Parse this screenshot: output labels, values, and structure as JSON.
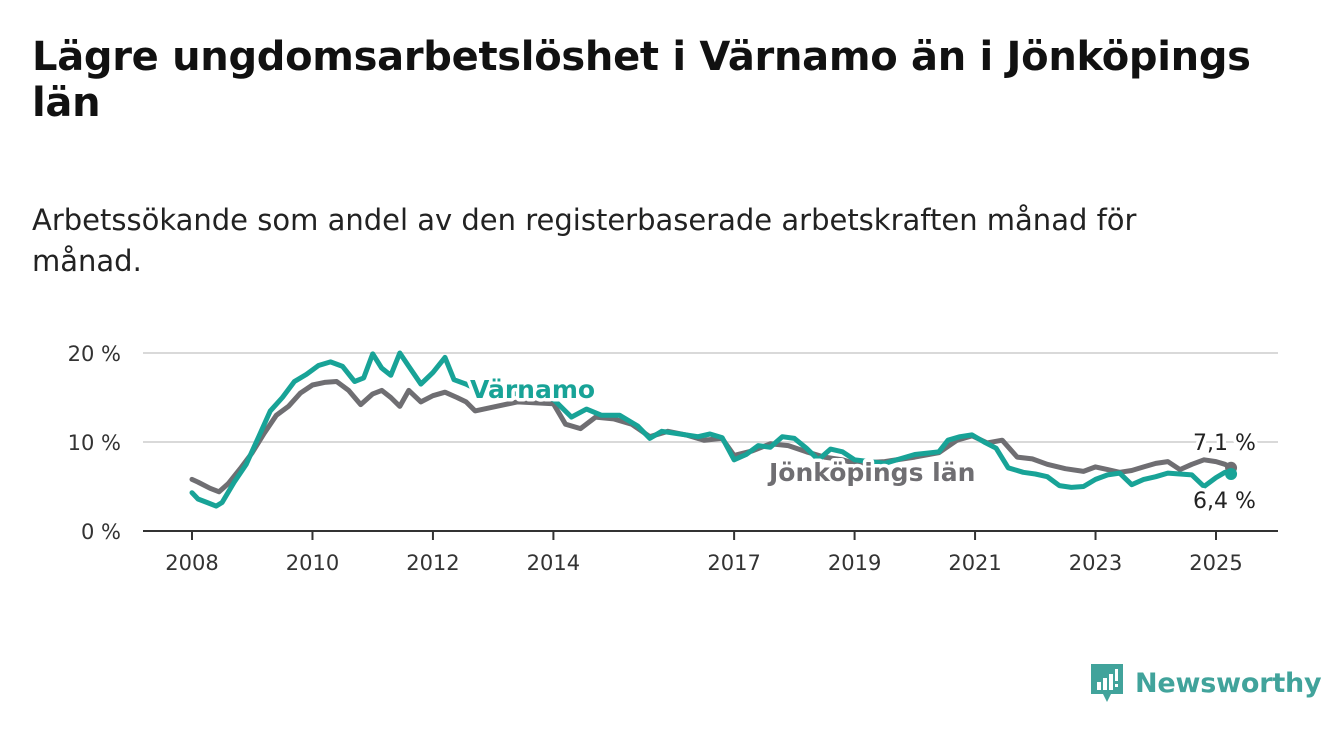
{
  "title": "Lägre ungdomsarbetslöshet i Värnamo än i Jönköpings län",
  "subtitle": "Arbetssökande som andel av den registerbaserade arbetskraften månad för månad.",
  "brand": {
    "name": "Newsworthy",
    "icon": "newsworthy-logo-icon",
    "color": "#41a39b"
  },
  "colors": {
    "varnamo": "#18a397",
    "jonkoping": "#6f6e72",
    "grid": "#d9d9d9",
    "axis": "#333333"
  },
  "chart_data": {
    "type": "line",
    "title": "Lägre ungdomsarbetslöshet i Värnamo än i Jönköpings län",
    "subtitle": "Arbetssökande som andel av den registerbaserade arbetskraften månad för månad.",
    "xlabel": "",
    "ylabel": "",
    "x_range": [
      2008,
      2025.25
    ],
    "ylim": [
      0,
      20
    ],
    "y_ticks": [
      0,
      10,
      20
    ],
    "y_tick_labels": [
      "0 %",
      "10 %",
      "20 %"
    ],
    "x_ticks": [
      2008,
      2010,
      2012,
      2014,
      2017,
      2019,
      2021,
      2023,
      2025
    ],
    "x_tick_labels": [
      "2008",
      "2010",
      "2012",
      "2014",
      "2017",
      "2019",
      "2021",
      "2023",
      "2025"
    ],
    "grid": true,
    "legend": "direct labels",
    "series": [
      {
        "name": "Värnamo",
        "color": "#18a397",
        "end_label": "6,4 %",
        "points": [
          [
            2008.0,
            4.3
          ],
          [
            2008.1,
            3.6
          ],
          [
            2008.25,
            3.2
          ],
          [
            2008.4,
            2.8
          ],
          [
            2008.5,
            3.2
          ],
          [
            2008.7,
            5.5
          ],
          [
            2008.9,
            7.5
          ],
          [
            2009.1,
            10.5
          ],
          [
            2009.3,
            13.5
          ],
          [
            2009.5,
            15.0
          ],
          [
            2009.7,
            16.8
          ],
          [
            2009.9,
            17.6
          ],
          [
            2010.1,
            18.6
          ],
          [
            2010.3,
            19.0
          ],
          [
            2010.5,
            18.5
          ],
          [
            2010.7,
            16.8
          ],
          [
            2010.85,
            17.2
          ],
          [
            2011.0,
            19.9
          ],
          [
            2011.15,
            18.3
          ],
          [
            2011.3,
            17.5
          ],
          [
            2011.45,
            20.0
          ],
          [
            2011.6,
            18.5
          ],
          [
            2011.8,
            16.5
          ],
          [
            2012.0,
            17.8
          ],
          [
            2012.2,
            19.5
          ],
          [
            2012.35,
            17.0
          ],
          [
            2012.55,
            16.5
          ],
          [
            2012.7,
            16.0
          ],
          [
            2013.4,
            15.4
          ],
          [
            2014.0,
            14.8
          ],
          [
            2014.3,
            12.8
          ],
          [
            2014.55,
            13.7
          ],
          [
            2014.8,
            13.0
          ],
          [
            2015.1,
            13.0
          ],
          [
            2015.4,
            11.8
          ],
          [
            2015.6,
            10.4
          ],
          [
            2015.8,
            11.2
          ],
          [
            2016.1,
            10.9
          ],
          [
            2016.4,
            10.6
          ],
          [
            2016.6,
            10.9
          ],
          [
            2016.8,
            10.5
          ],
          [
            2017.0,
            8.0
          ],
          [
            2017.2,
            8.6
          ],
          [
            2017.4,
            9.6
          ],
          [
            2017.6,
            9.4
          ],
          [
            2017.8,
            10.6
          ],
          [
            2018.0,
            10.4
          ],
          [
            2018.2,
            9.3
          ],
          [
            2018.4,
            8.0
          ],
          [
            2018.6,
            9.2
          ],
          [
            2018.8,
            8.9
          ],
          [
            2019.0,
            8.0
          ],
          [
            2019.5,
            7.6
          ],
          [
            2020.0,
            8.6
          ],
          [
            2020.4,
            8.9
          ],
          [
            2020.55,
            10.2
          ],
          [
            2020.75,
            10.6
          ],
          [
            2020.95,
            10.8
          ],
          [
            2021.15,
            10.0
          ],
          [
            2021.35,
            9.3
          ],
          [
            2021.55,
            7.1
          ],
          [
            2021.8,
            6.6
          ],
          [
            2022.0,
            6.4
          ],
          [
            2022.2,
            6.1
          ],
          [
            2022.4,
            5.1
          ],
          [
            2022.6,
            4.9
          ],
          [
            2022.8,
            5.0
          ],
          [
            2023.0,
            5.8
          ],
          [
            2023.2,
            6.3
          ],
          [
            2023.4,
            6.5
          ],
          [
            2023.6,
            5.2
          ],
          [
            2023.8,
            5.8
          ],
          [
            2024.0,
            6.1
          ],
          [
            2024.2,
            6.5
          ],
          [
            2024.4,
            6.4
          ],
          [
            2024.6,
            6.3
          ],
          [
            2024.8,
            5.0
          ],
          [
            2025.0,
            6.0
          ],
          [
            2025.15,
            6.6
          ],
          [
            2025.25,
            6.4
          ]
        ]
      },
      {
        "name": "Jönköpings län",
        "color": "#6f6e72",
        "end_label": "7,1 %",
        "points": [
          [
            2008.0,
            5.8
          ],
          [
            2008.1,
            5.5
          ],
          [
            2008.3,
            4.8
          ],
          [
            2008.45,
            4.4
          ],
          [
            2008.6,
            5.3
          ],
          [
            2008.8,
            7.0
          ],
          [
            2009.0,
            8.8
          ],
          [
            2009.2,
            11.0
          ],
          [
            2009.4,
            13.0
          ],
          [
            2009.6,
            14.0
          ],
          [
            2009.8,
            15.5
          ],
          [
            2010.0,
            16.4
          ],
          [
            2010.2,
            16.7
          ],
          [
            2010.4,
            16.8
          ],
          [
            2010.6,
            15.8
          ],
          [
            2010.8,
            14.2
          ],
          [
            2011.0,
            15.4
          ],
          [
            2011.15,
            15.8
          ],
          [
            2011.3,
            15.0
          ],
          [
            2011.45,
            14.0
          ],
          [
            2011.6,
            15.8
          ],
          [
            2011.8,
            14.5
          ],
          [
            2012.0,
            15.2
          ],
          [
            2012.2,
            15.6
          ],
          [
            2012.4,
            15.0
          ],
          [
            2012.55,
            14.5
          ],
          [
            2012.7,
            13.5
          ],
          [
            2013.4,
            14.5
          ],
          [
            2014.0,
            14.3
          ],
          [
            2014.2,
            12.0
          ],
          [
            2014.45,
            11.5
          ],
          [
            2014.7,
            12.8
          ],
          [
            2015.0,
            12.6
          ],
          [
            2015.3,
            12.0
          ],
          [
            2015.6,
            10.6
          ],
          [
            2015.9,
            11.2
          ],
          [
            2016.2,
            10.8
          ],
          [
            2016.5,
            10.2
          ],
          [
            2016.8,
            10.4
          ],
          [
            2017.0,
            8.5
          ],
          [
            2017.3,
            9.0
          ],
          [
            2017.6,
            9.8
          ],
          [
            2017.9,
            9.6
          ],
          [
            2018.2,
            8.9
          ],
          [
            2018.5,
            8.3
          ],
          [
            2018.8,
            8.0
          ],
          [
            2019.0,
            7.6
          ],
          [
            2019.5,
            7.8
          ],
          [
            2020.0,
            8.3
          ],
          [
            2020.4,
            8.8
          ],
          [
            2020.7,
            10.2
          ],
          [
            2020.95,
            10.7
          ],
          [
            2021.2,
            9.9
          ],
          [
            2021.45,
            10.2
          ],
          [
            2021.7,
            8.3
          ],
          [
            2021.95,
            8.1
          ],
          [
            2022.2,
            7.5
          ],
          [
            2022.5,
            7.0
          ],
          [
            2022.8,
            6.7
          ],
          [
            2023.0,
            7.2
          ],
          [
            2023.2,
            6.9
          ],
          [
            2023.4,
            6.6
          ],
          [
            2023.6,
            6.8
          ],
          [
            2023.8,
            7.2
          ],
          [
            2024.0,
            7.6
          ],
          [
            2024.2,
            7.8
          ],
          [
            2024.4,
            6.9
          ],
          [
            2024.6,
            7.5
          ],
          [
            2024.8,
            8.0
          ],
          [
            2025.0,
            7.8
          ],
          [
            2025.15,
            7.5
          ],
          [
            2025.25,
            7.1
          ]
        ]
      }
    ]
  }
}
